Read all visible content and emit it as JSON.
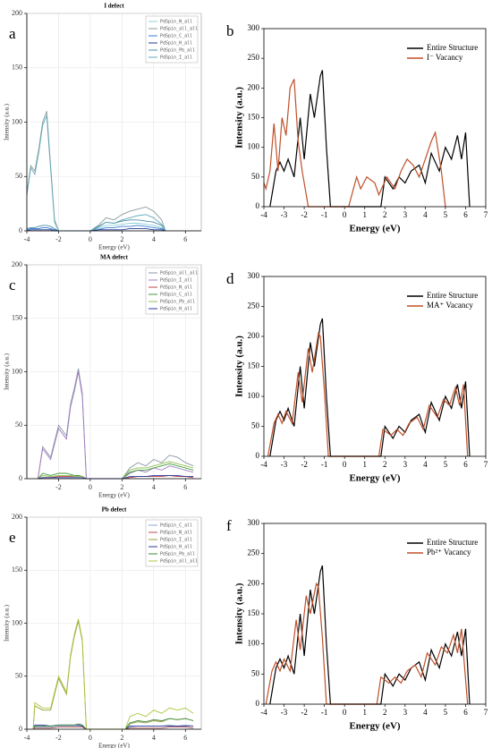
{
  "chart_data": [
    {
      "type": "line",
      "panel_label": "a",
      "title": "I defect",
      "xlabel": "Energy (eV)",
      "ylabel": "Intensity (a.u.)",
      "xlim": [
        -4,
        7
      ],
      "xticks": [
        -4,
        -2,
        0,
        2,
        4,
        6
      ],
      "ylim": [
        0,
        200
      ],
      "yticks": [
        0,
        50,
        100,
        150,
        200
      ],
      "grid": true,
      "legend": "upper right",
      "x": [
        -4,
        -3.75,
        -3.5,
        -3.25,
        -3,
        -2.75,
        -2.5,
        -2.25,
        -2,
        0,
        0.5,
        1,
        1.5,
        2,
        2.5,
        3,
        3.5,
        4,
        4.5,
        4.75
      ],
      "series": [
        {
          "name": "PdSpin_N_all",
          "color": "#8fd0d8",
          "values": [
            1,
            2,
            2,
            2,
            3,
            3,
            2,
            1,
            0,
            0,
            2,
            5,
            5,
            6,
            7,
            7,
            6,
            5,
            3,
            0
          ]
        },
        {
          "name": "PdSpin_all_all",
          "color": "#8a9a9c",
          "values": [
            35,
            60,
            55,
            75,
            100,
            110,
            60,
            10,
            0,
            0,
            5,
            12,
            10,
            15,
            18,
            20,
            22,
            18,
            10,
            0
          ]
        },
        {
          "name": "PdSpin_C_all",
          "color": "#3a7bd5",
          "values": [
            1,
            2,
            2,
            2,
            3,
            3,
            2,
            1,
            0,
            0,
            1,
            3,
            3,
            4,
            4,
            5,
            4,
            3,
            2,
            0
          ]
        },
        {
          "name": "PdSpin_H_all",
          "color": "#1f3a93",
          "values": [
            0,
            1,
            1,
            1,
            1,
            1,
            1,
            0,
            0,
            0,
            1,
            1,
            1,
            1,
            2,
            2,
            2,
            1,
            1,
            0
          ]
        },
        {
          "name": "PdSpin_Pb_all",
          "color": "#4a8fa8",
          "values": [
            2,
            3,
            3,
            4,
            5,
            5,
            4,
            2,
            0,
            0,
            4,
            8,
            7,
            9,
            10,
            10,
            9,
            8,
            5,
            0
          ]
        },
        {
          "name": "PdSpin_I_all",
          "color": "#5fa8b8",
          "values": [
            33,
            58,
            52,
            72,
            97,
            106,
            57,
            8,
            0,
            0,
            3,
            8,
            7,
            10,
            12,
            14,
            15,
            12,
            6,
            0
          ]
        }
      ]
    },
    {
      "type": "line",
      "panel_label": "b",
      "xlabel": "Energy (eV)",
      "ylabel": "Intensity (a.u.)",
      "xlim": [
        -4,
        7
      ],
      "xticks": [
        -4,
        -3,
        -2,
        -1,
        0,
        1,
        2,
        3,
        4,
        5,
        6,
        7
      ],
      "ylim": [
        0,
        300
      ],
      "yticks": [
        0,
        50,
        100,
        150,
        200,
        250,
        300
      ],
      "grid": false,
      "legend": "upper right",
      "series": [
        {
          "name": "Entire Structure",
          "color": "#000000",
          "x": [
            -3.7,
            -3.4,
            -3.2,
            -3,
            -2.8,
            -2.5,
            -2.2,
            -2,
            -1.7,
            -1.5,
            -1.2,
            -1.1,
            -0.9,
            -0.7,
            1.8,
            2,
            2.4,
            2.7,
            3,
            3.3,
            3.7,
            4,
            4.3,
            4.7,
            5,
            5.3,
            5.6,
            5.8,
            6,
            6.2
          ],
          "values": [
            0,
            60,
            75,
            60,
            80,
            50,
            150,
            80,
            190,
            150,
            220,
            230,
            100,
            0,
            0,
            50,
            30,
            50,
            40,
            60,
            70,
            40,
            90,
            60,
            100,
            80,
            120,
            80,
            125,
            0
          ]
        },
        {
          "name": "I⁻ Vacancy",
          "color": "#c0502a",
          "x": [
            -4,
            -3.9,
            -3.7,
            -3.5,
            -3.3,
            -3.1,
            -2.9,
            -2.7,
            -2.5,
            -2.3,
            -2.1,
            -1.8,
            0.2,
            0.6,
            0.8,
            1.1,
            1.5,
            1.7,
            2.1,
            2.5,
            2.8,
            3.1,
            3.4,
            3.7,
            4,
            4.3,
            4.5,
            4.8,
            5
          ],
          "values": [
            40,
            30,
            60,
            140,
            60,
            150,
            120,
            200,
            215,
            110,
            60,
            0,
            0,
            50,
            30,
            50,
            40,
            20,
            50,
            30,
            60,
            80,
            70,
            50,
            80,
            110,
            125,
            60,
            0
          ]
        }
      ]
    },
    {
      "type": "line",
      "panel_label": "c",
      "title": "MA defect",
      "xlabel": "Energy (eV)",
      "ylabel": "Intensity (a.u.)",
      "xlim": [
        -4,
        7
      ],
      "xticks": [
        -2,
        0,
        2,
        4,
        6
      ],
      "ylim": [
        0,
        200
      ],
      "yticks": [
        0,
        50,
        100,
        150,
        200
      ],
      "grid": true,
      "legend": "upper right",
      "x": [
        -3.3,
        -3,
        -2.5,
        -2,
        -1.5,
        -1.25,
        -1,
        -0.75,
        -0.5,
        -0.25,
        2,
        2.5,
        3,
        3.5,
        4,
        4.5,
        5,
        5.5,
        6,
        6.5
      ],
      "series": [
        {
          "name": "PdSpin_all_all",
          "color": "#8a98a8",
          "values": [
            0,
            30,
            20,
            50,
            40,
            70,
            85,
            103,
            80,
            0,
            0,
            10,
            15,
            12,
            18,
            15,
            22,
            20,
            15,
            12
          ]
        },
        {
          "name": "PdSpin_I_all",
          "color": "#a07cc0",
          "values": [
            0,
            28,
            18,
            47,
            37,
            67,
            82,
            100,
            77,
            0,
            0,
            5,
            8,
            6,
            10,
            8,
            12,
            10,
            8,
            6
          ]
        },
        {
          "name": "PdSpin_N_all",
          "color": "#c04040",
          "values": [
            0,
            1,
            1,
            2,
            2,
            2,
            2,
            3,
            2,
            0,
            0,
            1,
            2,
            2,
            2,
            2,
            3,
            2,
            2,
            1
          ]
        },
        {
          "name": "PdSpin_C_all",
          "color": "#3c9a3c",
          "values": [
            0,
            5,
            3,
            5,
            5,
            4,
            3,
            3,
            2,
            0,
            0,
            6,
            8,
            8,
            10,
            12,
            14,
            12,
            10,
            8
          ]
        },
        {
          "name": "PdSpin_Pb_all",
          "color": "#90c050",
          "values": [
            0,
            3,
            2,
            3,
            3,
            3,
            2,
            2,
            2,
            0,
            0,
            8,
            10,
            10,
            12,
            14,
            16,
            14,
            12,
            10
          ]
        },
        {
          "name": "PdSpin_H_all",
          "color": "#2a3aa0",
          "values": [
            0,
            1,
            1,
            1,
            1,
            1,
            1,
            1,
            1,
            0,
            0,
            2,
            2,
            2,
            3,
            3,
            3,
            3,
            2,
            2
          ]
        }
      ]
    },
    {
      "type": "line",
      "panel_label": "d",
      "xlabel": "Energy (eV)",
      "ylabel": "Intensity (a.u.)",
      "xlim": [
        -4,
        7
      ],
      "xticks": [
        -4,
        -3,
        -2,
        -1,
        0,
        1,
        2,
        3,
        4,
        5,
        6,
        7
      ],
      "ylim": [
        0,
        300
      ],
      "yticks": [
        0,
        50,
        100,
        150,
        200,
        250,
        300
      ],
      "grid": false,
      "legend": "upper right",
      "series": [
        {
          "name": "Entire Structure",
          "color": "#000000",
          "x": [
            -3.7,
            -3.4,
            -3.2,
            -3,
            -2.8,
            -2.5,
            -2.2,
            -2,
            -1.7,
            -1.5,
            -1.2,
            -1.1,
            -0.9,
            -0.7,
            1.8,
            2,
            2.4,
            2.7,
            3,
            3.3,
            3.7,
            4,
            4.3,
            4.7,
            5,
            5.3,
            5.6,
            5.8,
            6,
            6.2
          ],
          "values": [
            0,
            60,
            75,
            60,
            80,
            50,
            150,
            80,
            190,
            150,
            220,
            230,
            100,
            0,
            0,
            50,
            30,
            50,
            40,
            60,
            70,
            40,
            90,
            60,
            100,
            80,
            120,
            80,
            125,
            0
          ]
        },
        {
          "name": "MA⁺ Vacancy",
          "color": "#c0502a",
          "x": [
            -3.8,
            -3.5,
            -3.3,
            -3.1,
            -2.9,
            -2.6,
            -2.3,
            -2.1,
            -1.8,
            -1.6,
            -1.3,
            -1.2,
            -1,
            -0.8,
            1.7,
            1.9,
            2.3,
            2.6,
            2.9,
            3.2,
            3.6,
            3.9,
            4.2,
            4.6,
            4.9,
            5.2,
            5.5,
            5.7,
            5.9,
            6.1
          ],
          "values": [
            0,
            55,
            70,
            55,
            75,
            55,
            140,
            90,
            180,
            140,
            205,
            200,
            110,
            0,
            0,
            45,
            35,
            45,
            35,
            55,
            65,
            45,
            85,
            65,
            95,
            85,
            115,
            85,
            120,
            0
          ]
        }
      ]
    },
    {
      "type": "line",
      "panel_label": "e",
      "title": "Pb defect",
      "xlabel": "Energy (eV)",
      "ylabel": "Intensity (a.u.)",
      "xlim": [
        -4,
        7
      ],
      "xticks": [
        -4,
        -2,
        0,
        2,
        4,
        6
      ],
      "ylim": [
        0,
        200
      ],
      "yticks": [
        0,
        50,
        100,
        150,
        200
      ],
      "grid": true,
      "legend": "upper right",
      "x": [
        -3.6,
        -3.5,
        -3,
        -2.5,
        -2,
        -1.5,
        -1.25,
        -1,
        -0.75,
        -0.5,
        -0.25,
        2.2,
        2.5,
        3,
        3.5,
        4,
        4.5,
        5,
        5.5,
        6,
        6.5
      ],
      "series": [
        {
          "name": "PdSpin_C_all",
          "color": "#8fa8d0",
          "values": [
            0,
            2,
            2,
            2,
            3,
            3,
            3,
            3,
            3,
            3,
            0,
            0,
            2,
            3,
            3,
            3,
            3,
            4,
            3,
            4,
            3
          ]
        },
        {
          "name": "PdSpin_N_all",
          "color": "#b05050",
          "values": [
            0,
            1,
            1,
            1,
            2,
            2,
            2,
            2,
            2,
            2,
            0,
            0,
            1,
            1,
            1,
            1,
            1,
            2,
            2,
            2,
            1
          ]
        },
        {
          "name": "PdSpin_I_all",
          "color": "#9a9a3c",
          "values": [
            0,
            22,
            18,
            18,
            48,
            33,
            68,
            88,
            102,
            83,
            0,
            0,
            5,
            7,
            6,
            8,
            7,
            10,
            9,
            10,
            8
          ]
        },
        {
          "name": "PdSpin_H_all",
          "color": "#2a3aa0",
          "values": [
            0,
            4,
            4,
            3,
            4,
            4,
            4,
            4,
            4,
            3,
            0,
            0,
            3,
            3,
            3,
            3,
            3,
            3,
            3,
            3,
            3
          ]
        },
        {
          "name": "PdSpin_Pb_all",
          "color": "#3c8a3c",
          "values": [
            0,
            3,
            3,
            3,
            4,
            4,
            4,
            4,
            5,
            4,
            0,
            0,
            6,
            8,
            7,
            9,
            8,
            10,
            9,
            10,
            8
          ]
        },
        {
          "name": "PdSpin_all_all",
          "color": "#a8c840",
          "values": [
            0,
            25,
            20,
            20,
            50,
            35,
            70,
            90,
            104,
            85,
            0,
            0,
            12,
            15,
            12,
            18,
            15,
            20,
            18,
            20,
            15
          ]
        }
      ]
    },
    {
      "type": "line",
      "panel_label": "f",
      "xlabel": "Energy (eV)",
      "ylabel": "Intensity (a.u.)",
      "xlim": [
        -4,
        7
      ],
      "xticks": [
        -4,
        -3,
        -2,
        -1,
        0,
        1,
        2,
        3,
        4,
        5,
        6,
        7
      ],
      "ylim": [
        0,
        300
      ],
      "yticks": [
        0,
        50,
        100,
        150,
        200,
        250,
        300
      ],
      "grid": false,
      "legend": "upper right",
      "series": [
        {
          "name": "Entire Structure",
          "color": "#000000",
          "x": [
            -3.7,
            -3.4,
            -3.2,
            -3,
            -2.8,
            -2.5,
            -2.2,
            -2,
            -1.7,
            -1.5,
            -1.2,
            -1.1,
            -0.9,
            -0.7,
            1.8,
            2,
            2.4,
            2.7,
            3,
            3.3,
            3.7,
            4,
            4.3,
            4.7,
            5,
            5.3,
            5.6,
            5.8,
            6,
            6.2
          ],
          "values": [
            0,
            60,
            75,
            60,
            80,
            50,
            150,
            80,
            190,
            150,
            220,
            230,
            100,
            0,
            0,
            50,
            30,
            50,
            40,
            60,
            70,
            40,
            90,
            60,
            100,
            80,
            120,
            80,
            125,
            0
          ]
        },
        {
          "name": "Pb²⁺ Vacancy",
          "color": "#c0502a",
          "x": [
            -3.9,
            -3.6,
            -3.4,
            -3.2,
            -3,
            -2.7,
            -2.4,
            -2.2,
            -1.9,
            -1.7,
            -1.4,
            -1.3,
            -1.1,
            -0.9,
            1.6,
            1.8,
            2.2,
            2.5,
            2.8,
            3.1,
            3.5,
            3.8,
            4.1,
            4.5,
            4.8,
            5.1,
            5.4,
            5.6,
            5.8,
            6.1
          ],
          "values": [
            0,
            55,
            70,
            55,
            75,
            55,
            140,
            90,
            180,
            150,
            200,
            195,
            110,
            0,
            0,
            45,
            35,
            45,
            35,
            55,
            65,
            45,
            85,
            65,
            95,
            85,
            115,
            85,
            125,
            0
          ]
        }
      ]
    }
  ]
}
